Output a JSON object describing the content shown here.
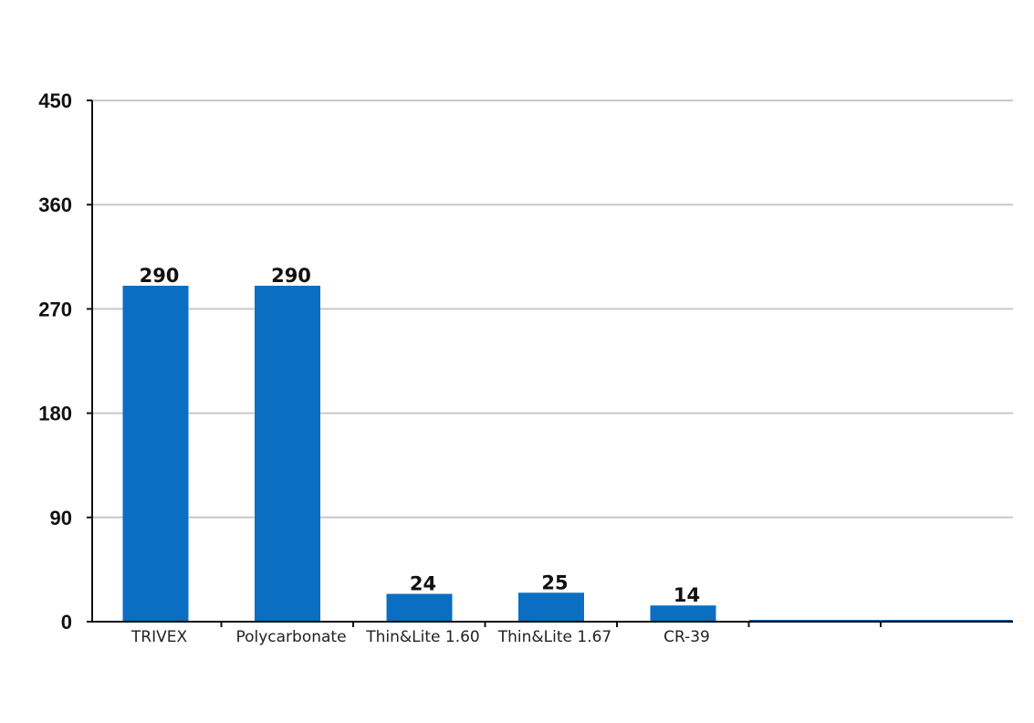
{
  "chart_data": {
    "type": "bar",
    "categories": [
      "TRIVEX",
      "Polycarbonate",
      "Thin&Lite 1.60",
      "Thin&Lite 1.67",
      "CR-39",
      "",
      ""
    ],
    "values": [
      290,
      290,
      24,
      25,
      14,
      0,
      0
    ],
    "data_labels": [
      "290",
      "290",
      "24",
      "25",
      "14",
      "",
      ""
    ],
    "title": "",
    "xlabel": "",
    "ylabel": "",
    "ylim": [
      0,
      450
    ],
    "yticks": [
      0,
      90,
      180,
      270,
      360,
      450
    ],
    "grid": true,
    "legend": "none",
    "colors": {
      "bar": "#0a6ec2",
      "grid": "#c8c8c8",
      "axis": "#111111"
    }
  }
}
